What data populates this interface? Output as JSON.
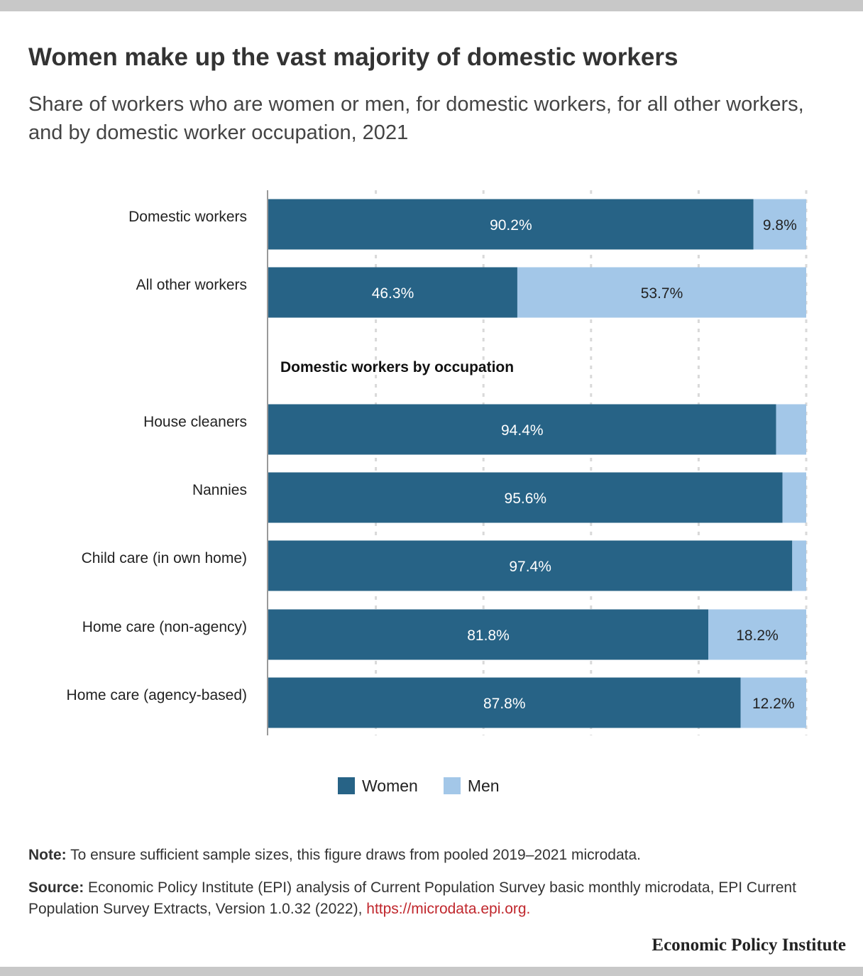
{
  "title": "Women make up the vast majority of domestic workers",
  "subtitle": "Share of workers who are women or men, for domestic workers, for all other workers, and by domestic worker occupation, 2021",
  "chart_data": {
    "type": "bar",
    "orientation": "horizontal",
    "stacked": true,
    "group_heading": "Domestic workers by occupation",
    "categories": [
      "Domestic workers",
      "All other workers",
      "House cleaners",
      "Nannies",
      "Child care (in own home)",
      "Home care (non-agency)",
      "Home care (agency-based)"
    ],
    "series": [
      {
        "name": "Women",
        "color": "#276386",
        "values": [
          90.2,
          46.3,
          94.4,
          95.6,
          97.4,
          81.8,
          87.8
        ],
        "labels": [
          "90.2%",
          "46.3%",
          "94.4%",
          "95.6%",
          "97.4%",
          "81.8%",
          "87.8%"
        ]
      },
      {
        "name": "Men",
        "color": "#a3c7e8",
        "values": [
          9.8,
          53.7,
          5.6,
          4.4,
          2.6,
          18.2,
          12.2
        ],
        "labels": [
          "9.8%",
          "53.7%",
          "",
          "",
          "",
          "18.2%",
          "12.2%"
        ]
      }
    ],
    "xlim": [
      0,
      100
    ],
    "grid": true,
    "legend": "bottom-center"
  },
  "note": {
    "label": "Note:",
    "text": " To ensure sufficient sample sizes, this figure draws from pooled 2019–2021 microdata."
  },
  "source": {
    "label": "Source:",
    "text": " Economic Policy Institute (EPI) analysis of Current Population Survey basic monthly microdata, EPI Current Population Survey Extracts, Version 1.0.32 (2022), ",
    "link": "https://microdata.epi.org."
  },
  "brand": "Economic Policy Institute"
}
